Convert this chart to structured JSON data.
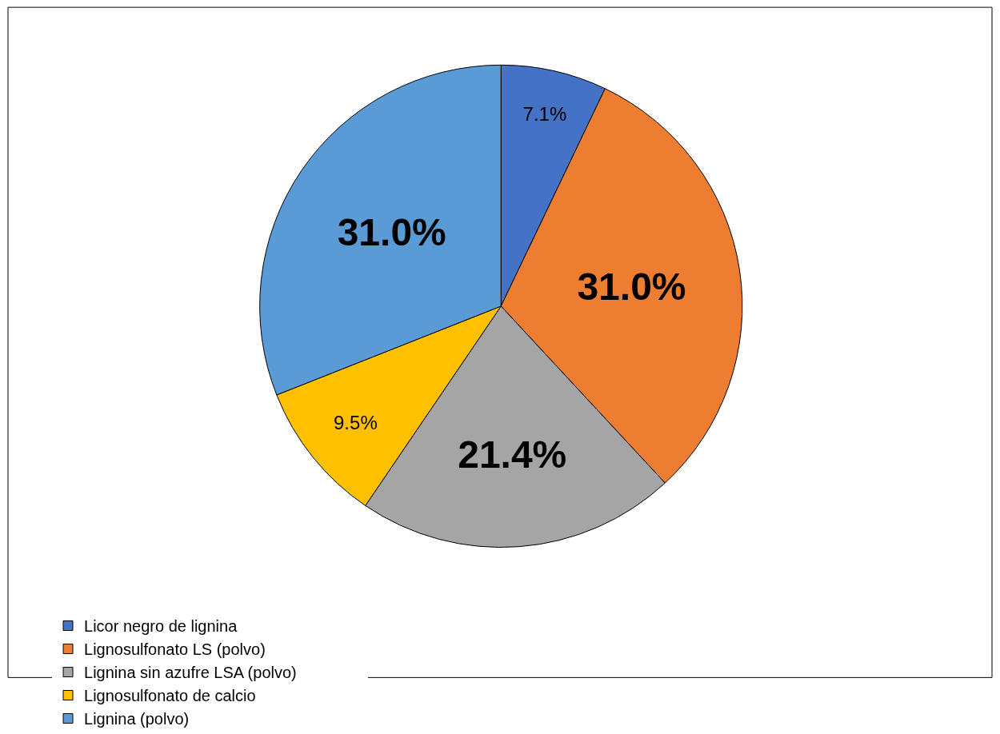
{
  "chart_data": {
    "type": "pie",
    "categories": [
      "Licor negro de lignina",
      "Lignosulfonato LS (polvo)",
      "Lignina sin azufre LSA (polvo)",
      "Lignosulfonato de calcio",
      "Lignina (polvo)"
    ],
    "values": [
      7.1,
      31.0,
      21.4,
      9.5,
      31.0
    ],
    "colors": [
      "#4472c4",
      "#ed7d31",
      "#a5a5a5",
      "#ffc000",
      "#5b9bd5"
    ],
    "value_labels": [
      "7.1%",
      "31.0%",
      "21.4%",
      "9.5%",
      "31.0%"
    ],
    "legend": "bottom"
  }
}
